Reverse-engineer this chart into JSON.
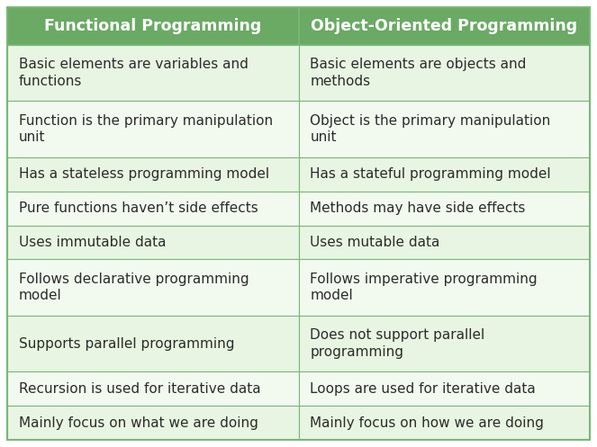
{
  "header": [
    "Functional Programming",
    "Object-Oriented Programming"
  ],
  "rows": [
    [
      "Basic elements are variables and\nfunctions",
      "Basic elements are objects and\nmethods"
    ],
    [
      "Function is the primary manipulation\nunit",
      "Object is the primary manipulation\nunit"
    ],
    [
      "Has a stateless programming model",
      "Has a stateful programming model"
    ],
    [
      "Pure functions haven’t side effects",
      "Methods may have side effects"
    ],
    [
      "Uses immutable data",
      "Uses mutable data"
    ],
    [
      "Follows declarative programming\nmodel",
      "Follows imperative programming\nmodel"
    ],
    [
      "Supports parallel programming",
      "Does not support parallel\nprogramming"
    ],
    [
      "Recursion is used for iterative data",
      "Loops are used for iterative data"
    ],
    [
      "Mainly focus on what we are doing",
      "Mainly focus on how we are doing"
    ]
  ],
  "header_bg": "#6aaa64",
  "header_text_color": "#ffffff",
  "row_bg_even": "#e8f5e2",
  "row_bg_odd": "#f2faf0",
  "border_color": "#7ab87a",
  "text_color": "#2c2c2c",
  "header_fontsize": 12.5,
  "cell_fontsize": 11.0,
  "fig_bg": "#ffffff",
  "fig_width": 6.63,
  "fig_height": 4.97,
  "dpi": 100
}
